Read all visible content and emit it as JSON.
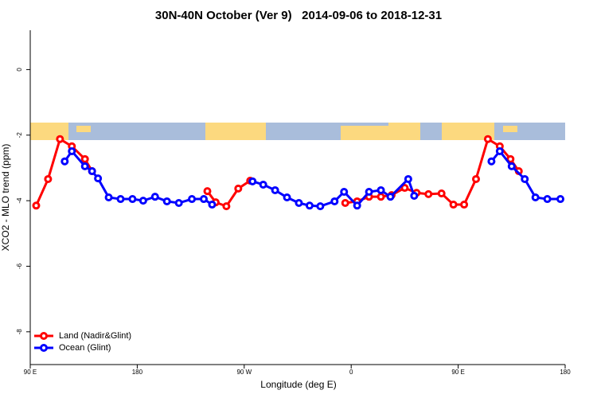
{
  "chart_data": {
    "type": "line",
    "title": "30N-40N October (Ver 9)   2014-09-06 to 2018-12-31",
    "x_label": "Longitude (deg E)",
    "y_label": "XCO2 - MLO trend (ppm)",
    "xlim": [
      90,
      540
    ],
    "xticks": [
      {
        "value": 90,
        "label": "90 E"
      },
      {
        "value": 180,
        "label": "180"
      },
      {
        "value": 270,
        "label": "90 W"
      },
      {
        "value": 360,
        "label": "0"
      },
      {
        "value": 450,
        "label": "90 E"
      },
      {
        "value": 540,
        "label": "180"
      }
    ],
    "ylim": [
      -9,
      1.2
    ],
    "yticks": [
      0,
      -2,
      -4,
      -6,
      -8
    ],
    "legend": "bottomleft",
    "series": [
      {
        "name": "Land (Nadir&Glint)",
        "color": "#ff0000",
        "x": [
          95,
          105,
          115,
          125,
          136,
          142,
          190,
          239,
          246,
          255,
          265,
          275,
          315,
          355,
          365,
          375,
          385,
          394,
          405,
          415,
          425,
          436,
          446,
          455,
          465,
          475,
          485,
          494,
          501
        ],
        "values": [
          -4.15,
          -3.34,
          -2.12,
          -2.34,
          -2.73,
          -3.1,
          null,
          -3.71,
          -4.05,
          -4.17,
          -3.63,
          -3.39,
          null,
          -4.07,
          -4.02,
          -3.88,
          -3.88,
          -3.83,
          -3.61,
          -3.76,
          -3.8,
          -3.78,
          -4.12,
          -4.12,
          -3.34,
          -2.12,
          -2.34,
          -2.73,
          -3.1
        ]
      },
      {
        "name": "Ocean (Glint)",
        "color": "#0000ff",
        "x": [
          119,
          125,
          136,
          142,
          147,
          156,
          166,
          176,
          185,
          195,
          205,
          215,
          226,
          236,
          243,
          260,
          277,
          286,
          296,
          306,
          316,
          325,
          334,
          346,
          354,
          365,
          375,
          385,
          393,
          408,
          413,
          445,
          478,
          485,
          495,
          506,
          515,
          525,
          536
        ],
        "values": [
          -2.8,
          -2.49,
          -2.95,
          -3.1,
          -3.32,
          -3.9,
          -3.95,
          -3.95,
          -4.0,
          -3.88,
          -4.02,
          -4.07,
          -3.95,
          -3.95,
          -4.12,
          null,
          -3.41,
          -3.51,
          -3.68,
          -3.9,
          -4.07,
          -4.15,
          -4.17,
          -4.02,
          -3.73,
          -4.15,
          -3.73,
          -3.68,
          -3.88,
          -3.34,
          -3.85,
          null,
          -2.8,
          -2.49,
          -2.95,
          -3.34,
          -3.9,
          -3.95,
          -3.95
        ]
      }
    ]
  }
}
